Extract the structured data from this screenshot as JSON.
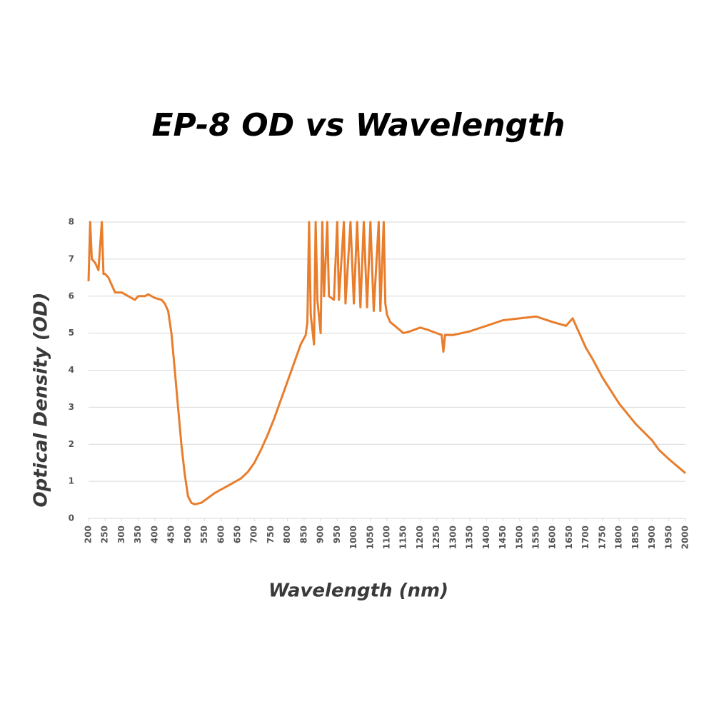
{
  "chart_data": {
    "type": "line",
    "title": "EP-8 OD vs Wavelength",
    "xlabel": "Wavelength (nm)",
    "ylabel": "Optical Density (OD)",
    "xlim": [
      200,
      2000
    ],
    "ylim": [
      0,
      8
    ],
    "xticks": [
      200,
      250,
      300,
      350,
      400,
      450,
      500,
      550,
      600,
      650,
      700,
      750,
      800,
      850,
      900,
      950,
      1000,
      1050,
      1100,
      1150,
      1200,
      1250,
      1300,
      1350,
      1400,
      1450,
      1500,
      1550,
      1600,
      1650,
      1700,
      1750,
      1800,
      1850,
      1900,
      1950,
      2000
    ],
    "yticks": [
      0,
      1,
      2,
      3,
      4,
      5,
      6,
      7,
      8
    ],
    "grid": true,
    "series": [
      {
        "name": "EP-8",
        "color": "#e87d2c",
        "x": [
          200,
          205,
          210,
          220,
          230,
          240,
          245,
          250,
          260,
          270,
          280,
          300,
          320,
          340,
          350,
          370,
          380,
          400,
          420,
          430,
          440,
          450,
          460,
          470,
          480,
          490,
          500,
          510,
          520,
          540,
          560,
          580,
          600,
          620,
          640,
          660,
          680,
          700,
          720,
          740,
          760,
          780,
          800,
          820,
          840,
          855,
          860,
          865,
          870,
          880,
          885,
          890,
          900,
          905,
          910,
          920,
          925,
          940,
          950,
          955,
          970,
          975,
          990,
          1000,
          1010,
          1020,
          1030,
          1040,
          1050,
          1060,
          1075,
          1080,
          1090,
          1095,
          1100,
          1110,
          1130,
          1150,
          1170,
          1200,
          1220,
          1250,
          1265,
          1270,
          1275,
          1300,
          1350,
          1400,
          1450,
          1500,
          1550,
          1600,
          1640,
          1660,
          1670,
          1680,
          1700,
          1720,
          1750,
          1800,
          1850,
          1900,
          1920,
          1950,
          2000
        ],
        "values": [
          6.4,
          8,
          7.0,
          6.9,
          6.7,
          8,
          6.6,
          6.6,
          6.5,
          6.3,
          6.1,
          6.1,
          6.0,
          5.9,
          6.0,
          6.0,
          6.05,
          5.95,
          5.9,
          5.8,
          5.6,
          5.0,
          4.0,
          3.0,
          2.0,
          1.2,
          0.6,
          0.42,
          0.38,
          0.42,
          0.55,
          0.68,
          0.78,
          0.88,
          0.98,
          1.08,
          1.25,
          1.5,
          1.85,
          2.25,
          2.7,
          3.2,
          3.7,
          4.2,
          4.7,
          4.95,
          5.3,
          8,
          5.5,
          4.7,
          8,
          5.9,
          5.0,
          8,
          6.0,
          8,
          6.0,
          5.9,
          8,
          5.9,
          8,
          5.8,
          8,
          5.8,
          8,
          5.7,
          8,
          5.7,
          8,
          5.6,
          8,
          5.6,
          8,
          5.8,
          5.5,
          5.3,
          5.15,
          5.0,
          5.05,
          5.15,
          5.1,
          5.0,
          4.95,
          4.5,
          4.95,
          4.95,
          5.05,
          5.2,
          5.35,
          5.4,
          5.45,
          5.3,
          5.2,
          5.4,
          5.2,
          5.0,
          4.6,
          4.3,
          3.8,
          3.1,
          2.55,
          2.1,
          1.85,
          1.6,
          1.22
        ]
      }
    ]
  }
}
